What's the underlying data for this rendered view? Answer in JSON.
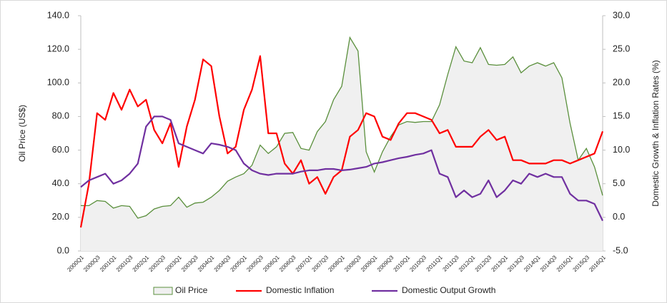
{
  "chart_data": {
    "type": "line",
    "categories": [
      "2000Q1",
      null,
      "2000Q3",
      null,
      "2001Q1",
      null,
      "2001Q3",
      null,
      "2002Q1",
      null,
      "2002Q3",
      null,
      "2003Q1",
      null,
      "2003Q3",
      null,
      "2004Q1",
      null,
      "2004Q3",
      null,
      "2005Q1",
      null,
      "2005Q3",
      null,
      "2006Q1",
      null,
      "2006Q3",
      null,
      "2007Q1",
      null,
      "2007Q3",
      null,
      "2008Q1",
      null,
      "2008Q3",
      null,
      "2009Q1",
      null,
      "2009Q3",
      null,
      "2010Q1",
      null,
      "2010Q3",
      null,
      "2011Q1",
      null,
      "2011Q3",
      null,
      "2012Q1",
      null,
      "2012Q3",
      null,
      "2013Q1",
      null,
      "2013Q3",
      null,
      "2014Q1",
      null,
      "2014Q3",
      null,
      "2015Q1",
      null,
      "2015Q3",
      null,
      "2016Q1"
    ],
    "series": [
      {
        "name": "Oil Price",
        "color": "#5a8f3c",
        "fill": "#f0f0f0",
        "area": true,
        "values": [
          27,
          27,
          30,
          29.5,
          25.5,
          27,
          26.5,
          19.5,
          21,
          25,
          26.5,
          27,
          32,
          26,
          28.5,
          29,
          32,
          36,
          41.5,
          44,
          46,
          51,
          63,
          58,
          62,
          70,
          70.5,
          61,
          60,
          71,
          77,
          90,
          98,
          127,
          119,
          59,
          47,
          59,
          68,
          75,
          77,
          76.5,
          77,
          77,
          87,
          105,
          121.5,
          113,
          112,
          121,
          111,
          110.5,
          111,
          115.5,
          106,
          110,
          112,
          110,
          112,
          103,
          76,
          54,
          61,
          50,
          33
        ]
      },
      {
        "name": "Domestic Inflation",
        "color": "#ff0000",
        "axis": "y2",
        "values": [
          -1.5,
          5,
          15.5,
          14.5,
          18.5,
          16,
          19,
          16.5,
          17.5,
          13,
          11,
          14,
          7.5,
          13.5,
          17.5,
          23.5,
          22.5,
          15,
          9.5,
          10.5,
          16,
          19,
          24,
          12.5,
          12.5,
          8,
          6.5,
          8.5,
          5,
          6,
          3.5,
          6,
          7,
          12,
          13,
          15.5,
          15,
          12,
          11.5,
          14,
          15.5,
          15.5,
          15,
          14.5,
          12.5,
          13,
          10.5,
          10.5,
          10.5,
          12,
          13,
          11.5,
          12,
          8.5,
          8.5,
          8,
          8,
          8,
          8.5,
          8.5,
          8,
          8.5,
          9,
          9.5,
          12.8
        ]
      },
      {
        "name": "Domestic Output Growth",
        "color": "#7030a0",
        "axis": "y2",
        "values": [
          4.5,
          5.5,
          6,
          6.5,
          5,
          5.5,
          6.5,
          8,
          13.5,
          15,
          15,
          14.5,
          11,
          10.5,
          10,
          9.5,
          11,
          10.8,
          10.5,
          10,
          8,
          7,
          6.5,
          6.3,
          6.5,
          6.5,
          6.5,
          6.8,
          7,
          7,
          7.2,
          7.2,
          7,
          7.1,
          7.3,
          7.5,
          8,
          8.2,
          8.5,
          8.8,
          9,
          9.3,
          9.5,
          10,
          6.5,
          6,
          3,
          4,
          3,
          3.5,
          5.5,
          3,
          4,
          5.5,
          5,
          6.5,
          6,
          6.5,
          6,
          6,
          3.5,
          2.5,
          2.5,
          2,
          -0.5
        ]
      }
    ],
    "ylabel": "Oil Price (US$)",
    "y2label": "Domestic Growth & Inflation Rates (%)",
    "ylim": [
      0,
      140
    ],
    "yticks": [
      {
        "value": 0,
        "label": "0.0"
      },
      {
        "value": 20,
        "label": "20.0"
      },
      {
        "value": 40,
        "label": "40.0"
      },
      {
        "value": 60,
        "label": "60.0"
      },
      {
        "value": 80,
        "label": "80.0"
      },
      {
        "value": 100,
        "label": "100.0"
      },
      {
        "value": 120,
        "label": "120.0"
      },
      {
        "value": 140,
        "label": "140.0"
      }
    ],
    "y2lim": [
      -5,
      30
    ],
    "y2ticks": [
      {
        "value": -5,
        "label": "-5.0"
      },
      {
        "value": 0,
        "label": "0.0"
      },
      {
        "value": 5,
        "label": "5.0"
      },
      {
        "value": 10,
        "label": "10.0"
      },
      {
        "value": 15,
        "label": "15.0"
      },
      {
        "value": 20,
        "label": "20.0"
      },
      {
        "value": 25,
        "label": "25.0"
      },
      {
        "value": 30,
        "label": "30.0"
      }
    ],
    "legend": "bottom"
  }
}
